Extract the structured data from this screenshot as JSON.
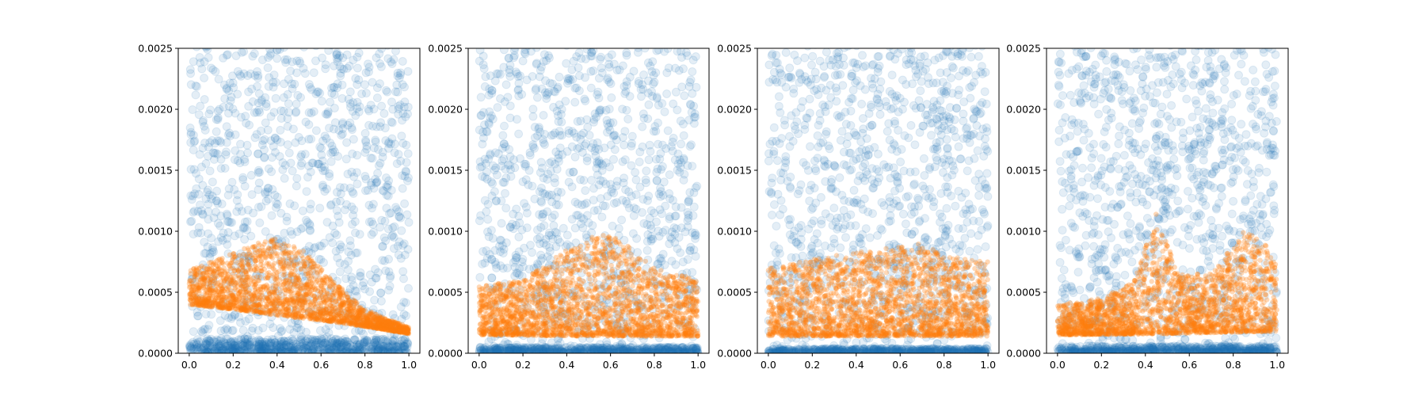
{
  "chart_data": [
    {
      "type": "scatter",
      "xlim": [
        -0.05,
        1.05
      ],
      "ylim": [
        0,
        0.0025
      ],
      "xticks": [
        0.0,
        0.2,
        0.4,
        0.6,
        0.8,
        1.0
      ],
      "xtick_labels": [
        "0.0",
        "0.2",
        "0.4",
        "0.6",
        "0.8",
        "1.0"
      ],
      "yticks": [
        0.0,
        0.0005,
        0.001,
        0.0015,
        0.002,
        0.0025
      ],
      "ytick_labels": [
        "0.0000",
        "0.0005",
        "0.0010",
        "0.0015",
        "0.0020",
        "0.0025"
      ],
      "grid": false,
      "series": [
        {
          "color": "#1f77b4",
          "opacity": 0.12,
          "description_shape": "uniform background cloud plus dense band near y=0",
          "band_x": [
            0.0,
            1.0
          ],
          "band_y": [
            0.0,
            0.00012
          ]
        },
        {
          "color": "#ff7f0e",
          "opacity": 0.3,
          "lower_envelope": [
            [
              0.0,
              0.0004
            ],
            [
              0.2,
              0.00036
            ],
            [
              0.4,
              0.00031
            ],
            [
              0.6,
              0.00027
            ],
            [
              0.8,
              0.00022
            ],
            [
              1.0,
              0.00016
            ]
          ],
          "upper_envelope": [
            [
              0.0,
              0.00068
            ],
            [
              0.1,
              0.00075
            ],
            [
              0.2,
              0.00082
            ],
            [
              0.3,
              0.0009
            ],
            [
              0.4,
              0.00094
            ],
            [
              0.5,
              0.00088
            ],
            [
              0.6,
              0.0007
            ],
            [
              0.7,
              0.00052
            ],
            [
              0.8,
              0.00036
            ],
            [
              0.9,
              0.00028
            ],
            [
              1.0,
              0.00022
            ]
          ]
        }
      ]
    },
    {
      "type": "scatter",
      "xlim": [
        -0.05,
        1.05
      ],
      "ylim": [
        0,
        0.0025
      ],
      "xticks": [
        0.0,
        0.2,
        0.4,
        0.6,
        0.8,
        1.0
      ],
      "xtick_labels": [
        "0.0",
        "0.2",
        "0.4",
        "0.6",
        "0.8",
        "1.0"
      ],
      "yticks": [
        0.0,
        0.0005,
        0.001,
        0.0015,
        0.002,
        0.0025
      ],
      "ytick_labels": [
        "0.0000",
        "0.0005",
        "0.0010",
        "0.0015",
        "0.0020",
        "0.0025"
      ],
      "grid": false,
      "series": [
        {
          "color": "#1f77b4",
          "opacity": 0.12,
          "band_x": [
            0.0,
            1.0
          ],
          "band_y": [
            0.0,
            5e-05
          ]
        },
        {
          "color": "#ff7f0e",
          "opacity": 0.3,
          "lower_envelope": [
            [
              0.0,
              0.00015
            ],
            [
              0.5,
              0.00014
            ],
            [
              1.0,
              0.00014
            ]
          ],
          "upper_envelope": [
            [
              0.0,
              0.00055
            ],
            [
              0.2,
              0.0006
            ],
            [
              0.4,
              0.00085
            ],
            [
              0.5,
              0.00095
            ],
            [
              0.6,
              0.00098
            ],
            [
              0.7,
              0.00085
            ],
            [
              0.8,
              0.0007
            ],
            [
              1.0,
              0.0006
            ]
          ]
        }
      ]
    },
    {
      "type": "scatter",
      "xlim": [
        -0.05,
        1.05
      ],
      "ylim": [
        0,
        0.0025
      ],
      "xticks": [
        0.0,
        0.2,
        0.4,
        0.6,
        0.8,
        1.0
      ],
      "xtick_labels": [
        "0.0",
        "0.2",
        "0.4",
        "0.6",
        "0.8",
        "1.0"
      ],
      "yticks": [
        0.0,
        0.0005,
        0.001,
        0.0015,
        0.002,
        0.0025
      ],
      "ytick_labels": [
        "0.0000",
        "0.0005",
        "0.0010",
        "0.0015",
        "0.0020",
        "0.0025"
      ],
      "grid": false,
      "series": [
        {
          "color": "#1f77b4",
          "opacity": 0.12,
          "band_x": [
            0.0,
            1.0
          ],
          "band_y": [
            0.0,
            4e-05
          ]
        },
        {
          "color": "#ff7f0e",
          "opacity": 0.3,
          "lower_envelope": [
            [
              0.0,
              0.00014
            ],
            [
              0.5,
              0.00014
            ],
            [
              1.0,
              0.00014
            ]
          ],
          "upper_envelope": [
            [
              0.0,
              0.0007
            ],
            [
              0.3,
              0.0008
            ],
            [
              0.5,
              0.00085
            ],
            [
              0.7,
              0.0009
            ],
            [
              0.8,
              0.0008
            ],
            [
              1.0,
              0.00075
            ]
          ]
        }
      ]
    },
    {
      "type": "scatter",
      "xlim": [
        -0.05,
        1.05
      ],
      "ylim": [
        0,
        0.0025
      ],
      "xticks": [
        0.0,
        0.2,
        0.4,
        0.6,
        0.8,
        1.0
      ],
      "xtick_labels": [
        "0.0",
        "0.2",
        "0.4",
        "0.6",
        "0.8",
        "1.0"
      ],
      "yticks": [
        0.0,
        0.0005,
        0.001,
        0.0015,
        0.002,
        0.0025
      ],
      "ytick_labels": [
        "0.0000",
        "0.0005",
        "0.0010",
        "0.0015",
        "0.0020",
        "0.0025"
      ],
      "grid": false,
      "series": [
        {
          "color": "#1f77b4",
          "opacity": 0.12,
          "band_x": [
            0.0,
            1.0
          ],
          "band_y": [
            0.0,
            6e-05
          ]
        },
        {
          "color": "#ff7f0e",
          "opacity": 0.3,
          "lower_envelope": [
            [
              0.0,
              0.00015
            ],
            [
              0.5,
              0.00016
            ],
            [
              1.0,
              0.00018
            ]
          ],
          "upper_envelope": [
            [
              0.0,
              0.0004
            ],
            [
              0.2,
              0.00045
            ],
            [
              0.35,
              0.0006
            ],
            [
              0.45,
              0.00115
            ],
            [
              0.55,
              0.00065
            ],
            [
              0.7,
              0.00065
            ],
            [
              0.85,
              0.001
            ],
            [
              0.95,
              0.0009
            ],
            [
              1.0,
              0.0007
            ]
          ]
        }
      ]
    }
  ]
}
